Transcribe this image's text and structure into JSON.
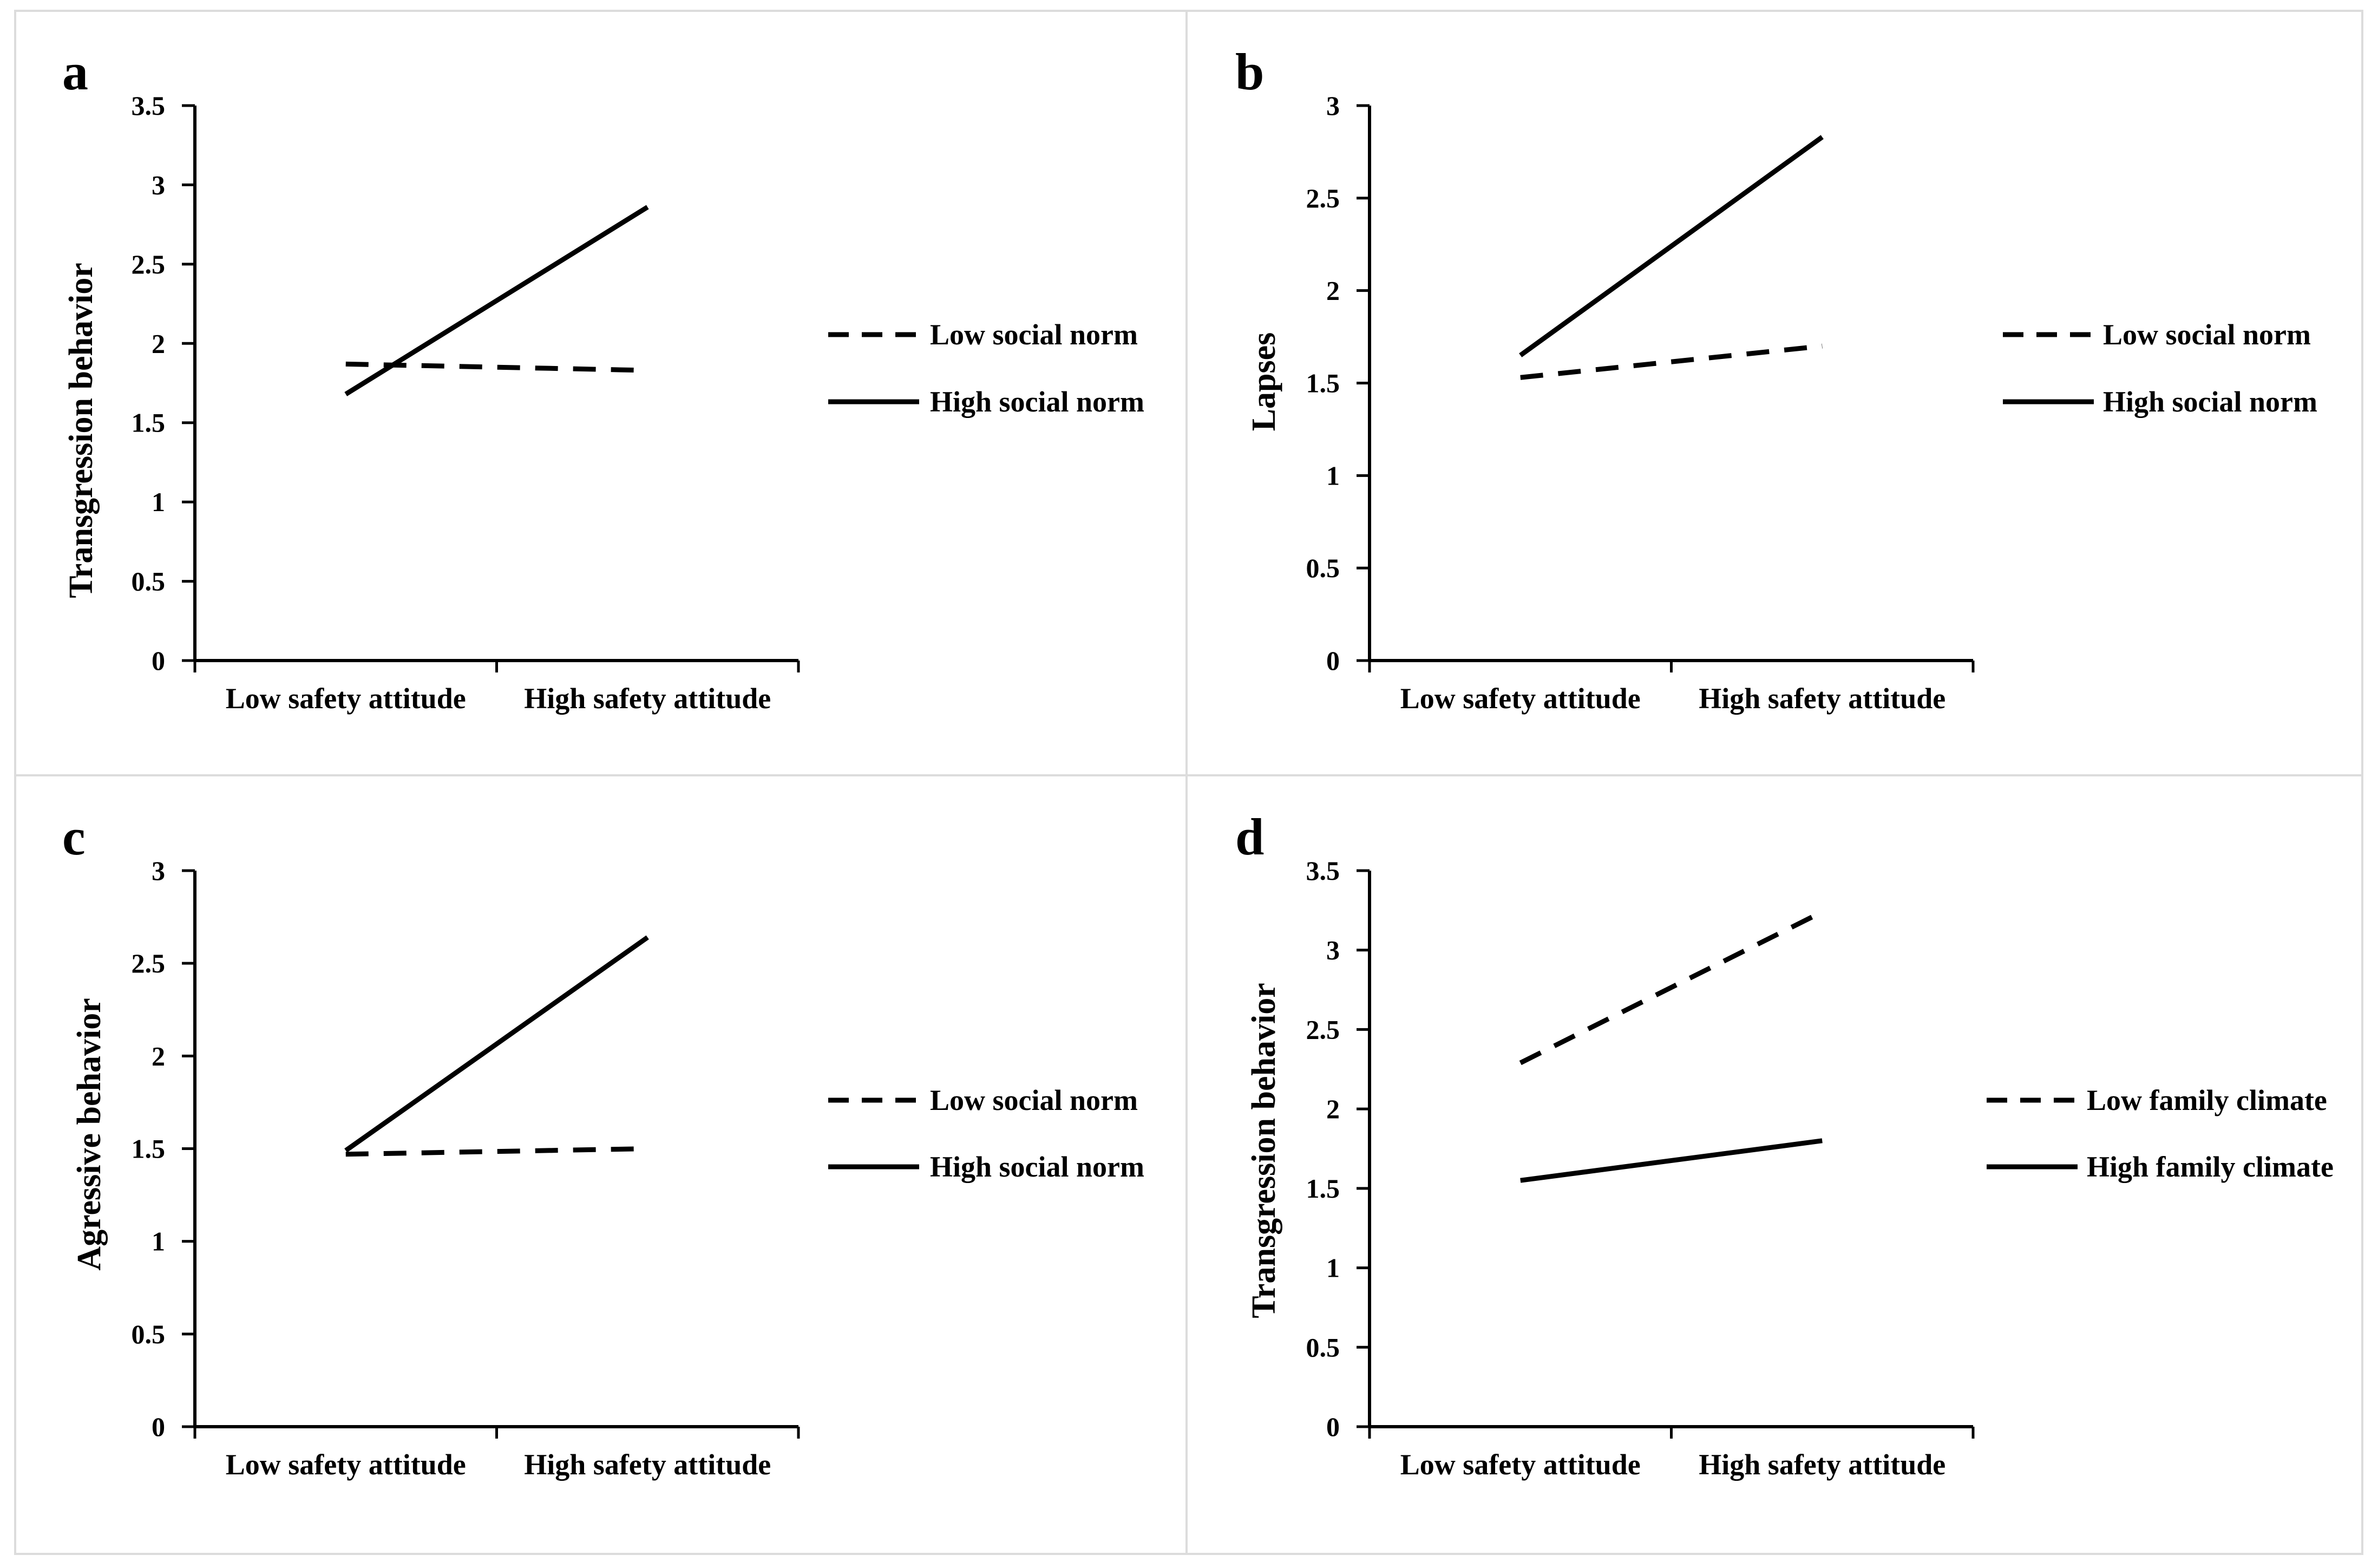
{
  "colors": {
    "background": "#ffffff",
    "ink": "#000000",
    "panel_border": "#dcdcdc"
  },
  "chart_data": [
    {
      "panel": "a",
      "type": "line",
      "categories": [
        "Low safety attitude",
        "High safety attitude"
      ],
      "ylabel": "Transgression behavior",
      "ylim": [
        0,
        3.5
      ],
      "yticks": [
        "0",
        "0.5",
        "1",
        "1.5",
        "2",
        "2.5",
        "3",
        "3.5"
      ],
      "series": [
        {
          "name": "Low social norm",
          "style": "dashed",
          "values": [
            1.87,
            1.83
          ]
        },
        {
          "name": "High social norm",
          "style": "solid",
          "values": [
            1.68,
            2.86
          ]
        }
      ]
    },
    {
      "panel": "b",
      "type": "line",
      "categories": [
        "Low safety attitude",
        "High safety attitude"
      ],
      "ylabel": "Lapses",
      "ylim": [
        0,
        3
      ],
      "yticks": [
        "0",
        "0.5",
        "1",
        "1.5",
        "2",
        "2.5",
        "3"
      ],
      "series": [
        {
          "name": "Low social norm",
          "style": "dashed",
          "values": [
            1.53,
            1.7
          ]
        },
        {
          "name": "High social norm",
          "style": "solid",
          "values": [
            1.65,
            2.83
          ]
        }
      ]
    },
    {
      "panel": "c",
      "type": "line",
      "categories": [
        "Low safety attitude",
        "High safety attitude"
      ],
      "ylabel": "Agressive behavior",
      "ylim": [
        0,
        3
      ],
      "yticks": [
        "0",
        "0.5",
        "1",
        "1.5",
        "2",
        "2.5",
        "3"
      ],
      "series": [
        {
          "name": "Low social norm",
          "style": "dashed",
          "values": [
            1.47,
            1.5
          ]
        },
        {
          "name": "High social norm",
          "style": "solid",
          "values": [
            1.49,
            2.64
          ]
        }
      ]
    },
    {
      "panel": "d",
      "type": "line",
      "categories": [
        "Low safety attitude",
        "High safety attitude"
      ],
      "ylabel": "Transgression behavior",
      "ylim": [
        0,
        3.5
      ],
      "yticks": [
        "0",
        "0.5",
        "1",
        "1.5",
        "2",
        "2.5",
        "3",
        "3.5"
      ],
      "series": [
        {
          "name": "Low family climate",
          "style": "dashed",
          "values": [
            2.29,
            3.24
          ]
        },
        {
          "name": "High family climate",
          "style": "solid",
          "values": [
            1.55,
            1.8
          ]
        }
      ]
    }
  ]
}
